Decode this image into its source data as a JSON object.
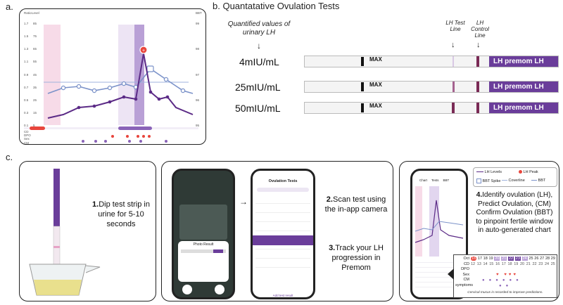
{
  "panels": {
    "a_label": "a.",
    "b_label": "b. Quantatative Ovulation Tests",
    "c_label": "c."
  },
  "chart_a": {
    "left_axis_title_1": "Ratio",
    "left_axis_title_2": "Level",
    "right_axis_title": "BBT",
    "ratio_ticks": [
      "1.7",
      "1.5",
      "1.3",
      "1.1",
      "0.9",
      "0.7",
      "0.5",
      "0.3",
      "0.1"
    ],
    "level_ticks": [
      "85",
      "75",
      "65",
      "55",
      "45",
      "35",
      "25",
      "15",
      "5"
    ],
    "bbt_ticks": [
      "99",
      "98",
      "97",
      "96",
      "95"
    ],
    "row_labels": [
      "CD",
      "DPO",
      "Sex",
      "CM"
    ],
    "lh_color": "#5b2a86",
    "bbt_color": "#7b92c9",
    "peak_color": "#e8453c"
  },
  "b": {
    "caption": "Quantified values of urinary LH",
    "test_line_label": "LH Test Line",
    "control_line_label": "LH Control Line",
    "strip_brand": "LH premom LH",
    "max_label": "MAX",
    "rows": [
      {
        "value": "4mIU/mL"
      },
      {
        "value": "25mIU/mL"
      },
      {
        "value": "50mIU/mL"
      }
    ]
  },
  "c": {
    "step1_num": "1.",
    "step1_text": "Dip test strip in urine for 5-10 seconds",
    "step2_num": "2.",
    "step2_text": "Scan test using the in-app camera",
    "step3_num": "3.",
    "step3_text": "Track your LH progression in Premom",
    "step4_num": "4.",
    "step4_text": "Identify ovulation (LH), Predict Ovulation, (CM) Confirm Ovulation (BBT) to pinpoint fertile window in auto-generated chart",
    "phone2_title": "Ovulation Tests",
    "phone2_footer": "Add test result",
    "phone1_title": "Photo Result",
    "legend": {
      "lh_levels": "LH Levels",
      "lh_peak": "LH Peak",
      "bbt_spike": "BBT Spike",
      "coverline": "Coverline",
      "bbt": "BBT"
    },
    "table_rows": [
      "Oct",
      "CD",
      "DPO",
      "Sex",
      "CM",
      "symptoms"
    ],
    "oct_days": [
      "16",
      "17",
      "18",
      "19",
      "20",
      "21",
      "22",
      "23",
      "24",
      "25",
      "26",
      "27",
      "28",
      "29"
    ],
    "cd_days": [
      "12",
      "13",
      "14",
      "15",
      "16",
      "17",
      "18",
      "19",
      "20",
      "21",
      "22",
      "23",
      "24",
      "25"
    ],
    "cervical_note": "Cervical mucus is recorded to improve predictions.",
    "phone3_tabs": [
      "Chart",
      "Tests",
      "BBT"
    ]
  }
}
